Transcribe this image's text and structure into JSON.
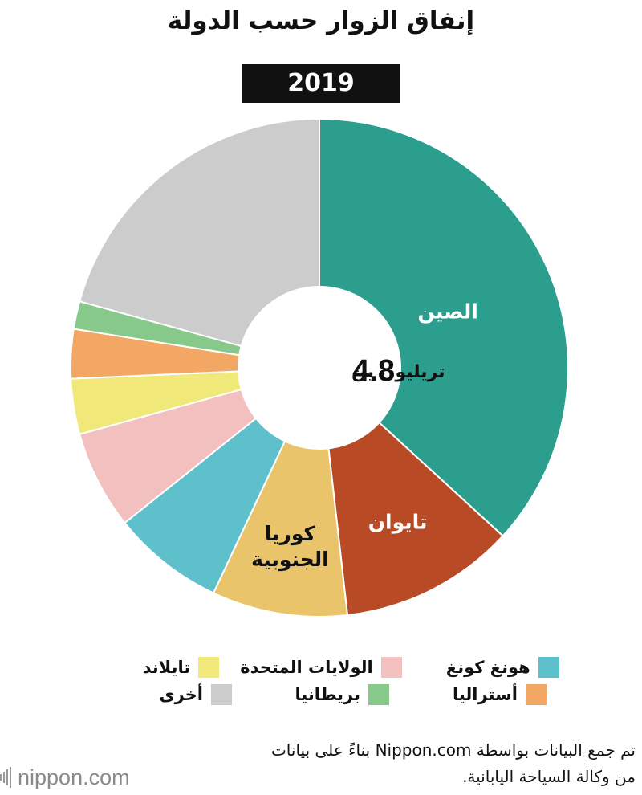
{
  "title": "إنفاق الزوار حسب الدولة",
  "year": "2019",
  "center_label": {
    "value": "4.8",
    "unit": "تريليون ين"
  },
  "chart_data": {
    "type": "pie",
    "title": "إنفاق الزوار حسب الدولة",
    "subtitle": "2019",
    "total": "4.8 تريليون ين",
    "categories": [
      "الصين",
      "تايوان",
      "كوريا الجنوبية",
      "هونغ كونغ",
      "الولايات المتحدة",
      "تايلاند",
      "أستراليا",
      "بريطانيا",
      "أخرى"
    ],
    "values": [
      36.8,
      11.4,
      8.8,
      7.3,
      6.4,
      3.6,
      3.2,
      1.8,
      20.7
    ],
    "colors": [
      "#2b9e8d",
      "#b84b26",
      "#eac46b",
      "#5ec0cb",
      "#f1c0bf",
      "#f0e878",
      "#f2a765",
      "#86c98a",
      "#cccccc"
    ],
    "slice_labels": [
      "الصين",
      "تايوان",
      "كوريا الجنوبية",
      "",
      "",
      "",
      "",
      "",
      ""
    ],
    "slice_label_colors": [
      "#ffffff",
      "#ffffff",
      "#111111",
      "",
      "",
      "",
      "",
      "",
      ""
    ],
    "legend_placement": "bottom"
  },
  "legend": {
    "rows": [
      [
        {
          "label": "هونغ كونغ",
          "color": "#5ec0cb"
        },
        {
          "label": "الولايات المتحدة",
          "color": "#f1c0bf"
        },
        {
          "label": "تايلاند",
          "color": "#f0e878"
        }
      ],
      [
        {
          "label": "أستراليا",
          "color": "#f2a765"
        },
        {
          "label": "بريطانيا",
          "color": "#86c98a"
        },
        {
          "label": "أخرى",
          "color": "#cccccc"
        }
      ]
    ]
  },
  "source": {
    "line1": "تم جمع البيانات بواسطة Nippon.com بناءً على بيانات",
    "line2": "من وكالة السياحة اليابانية."
  },
  "logo": {
    "name": "nippon",
    "suffix": ".com"
  }
}
